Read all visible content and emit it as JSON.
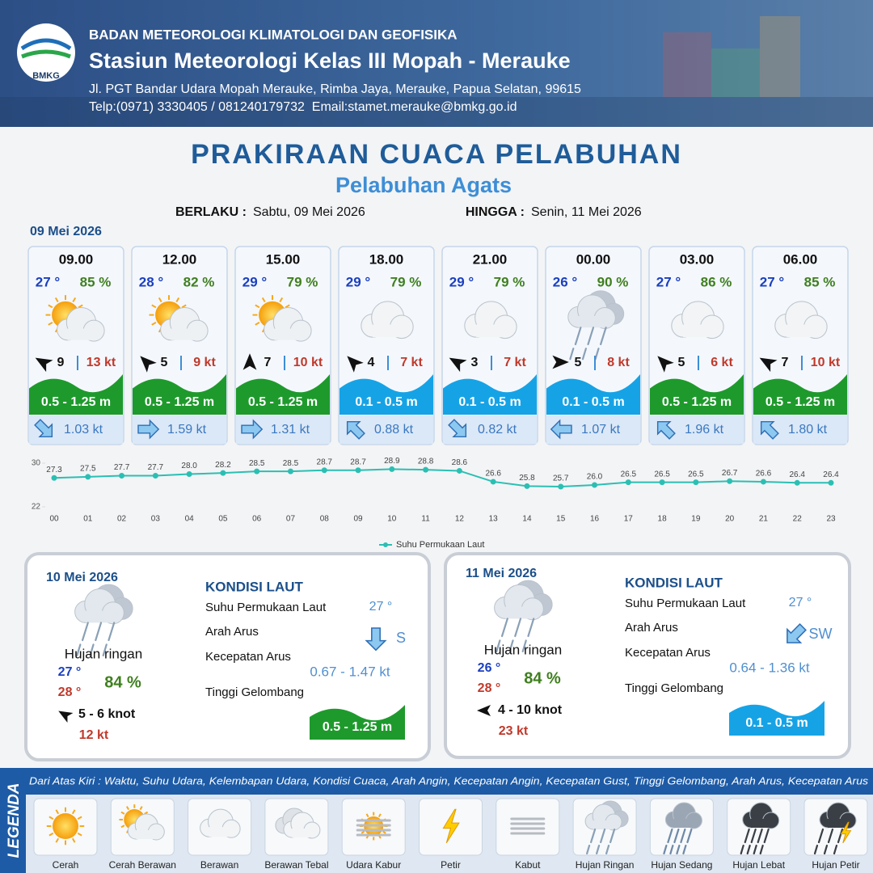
{
  "header": {
    "logo": "BMKG",
    "org": "BADAN METEOROLOGI KLIMATOLOGI DAN GEOFISIKA",
    "station": "Stasiun Meteorologi Kelas III Mopah - Merauke",
    "address": "Jl. PGT Bandar Udara Mopah Merauke, Rimba Jaya, Merauke, Papua Selatan, 99615",
    "contact": "Telp:(0971) 3330405 / 081240179732  Email:stamet.merauke@bmkg.go.id"
  },
  "title": "PRAKIRAAN CUACA PELABUHAN",
  "subtitle": "Pelabuhan Agats",
  "validity": {
    "from_label": "BERLAKU :",
    "from": "Sabtu, 09 Mei 2026",
    "to_label": "HINGGA :",
    "to": "Senin, 11 Mei 2026"
  },
  "day1": {
    "date": "09 Mei 2026",
    "cards": [
      {
        "time": "09.00",
        "temp": "27 °",
        "humidity": "85 %",
        "wind": "9",
        "gust": "13 kt",
        "wave": "0.5 - 1.25 m",
        "wave_color": "#1e9a2c",
        "current": "1.03 kt"
      },
      {
        "time": "12.00",
        "temp": "28 °",
        "humidity": "82 %",
        "wind": "5",
        "gust": "9 kt",
        "wave": "0.5 - 1.25 m",
        "wave_color": "#1e9a2c",
        "current": "1.59 kt"
      },
      {
        "time": "15.00",
        "temp": "29 °",
        "humidity": "79 %",
        "wind": "7",
        "gust": "10 kt",
        "wave": "0.5 - 1.25 m",
        "wave_color": "#1e9a2c",
        "current": "1.31 kt"
      },
      {
        "time": "18.00",
        "temp": "29 °",
        "humidity": "79 %",
        "wind": "4",
        "gust": "7 kt",
        "wave": "0.1 - 0.5 m",
        "wave_color": "#16a3e6",
        "current": "0.88 kt"
      },
      {
        "time": "21.00",
        "temp": "29 °",
        "humidity": "79 %",
        "wind": "3",
        "gust": "7 kt",
        "wave": "0.1 - 0.5 m",
        "wave_color": "#16a3e6",
        "current": "0.82 kt"
      },
      {
        "time": "00.00",
        "temp": "26 °",
        "humidity": "90 %",
        "wind": "5",
        "gust": "8 kt",
        "wave": "0.1 - 0.5 m",
        "wave_color": "#16a3e6",
        "current": "1.07 kt"
      },
      {
        "time": "03.00",
        "temp": "27 °",
        "humidity": "86 %",
        "wind": "5",
        "gust": "6 kt",
        "wave": "0.5 - 1.25 m",
        "wave_color": "#1e9a2c",
        "current": "1.96 kt"
      },
      {
        "time": "06.00",
        "temp": "27 °",
        "humidity": "85 %",
        "wind": "7",
        "gust": "10 kt",
        "wave": "0.5 - 1.25 m",
        "wave_color": "#1e9a2c",
        "current": "1.80 kt"
      }
    ]
  },
  "chart_data": {
    "type": "line",
    "categories": [
      "00",
      "01",
      "02",
      "03",
      "04",
      "05",
      "06",
      "07",
      "08",
      "09",
      "10",
      "11",
      "12",
      "13",
      "14",
      "15",
      "16",
      "17",
      "18",
      "19",
      "20",
      "21",
      "22",
      "23"
    ],
    "series": [
      {
        "name": "Suhu Permukaan Laut",
        "color": "#2bbfb3",
        "values": [
          27.3,
          27.5,
          27.7,
          27.7,
          28.0,
          28.2,
          28.5,
          28.5,
          28.7,
          28.7,
          28.9,
          28.8,
          28.6,
          26.6,
          25.8,
          25.7,
          26.0,
          26.5,
          26.5,
          26.5,
          26.7,
          26.6,
          26.4,
          26.4
        ],
        "value_labels": [
          "27.3",
          "27.5",
          "27.7",
          "27.7",
          "28.0",
          "28.2",
          "28.5",
          "28.5",
          "28.7",
          "28.7",
          "28.9",
          "28.8",
          "28.6",
          "26.6",
          "25.8",
          "25.7",
          "26.0",
          "26.5",
          "26.5",
          "26.5",
          "26.7",
          "26.6",
          "26.4",
          "26.4"
        ]
      }
    ],
    "ylim": [
      22,
      30
    ],
    "yticks": [
      22,
      30
    ]
  },
  "days": [
    {
      "date": "10 Mei 2026",
      "weather": "Hujan ringan",
      "temp_min": "27 °",
      "temp_max": "28 °",
      "humidity": "84 %",
      "wind": "5  - 6 knot",
      "gust": "12 kt",
      "wave_color": "#1e9a2c",
      "sea": {
        "title": "KONDISI LAUT",
        "rows": [
          {
            "label": "Suhu Permukaan Laut",
            "value": "27 °"
          },
          {
            "label": "Arah Arus",
            "value": "S"
          },
          {
            "label": "Kecepatan Arus",
            "value": "0.67 - 1.47 kt"
          },
          {
            "label": "Tinggi Gelombang",
            "value": "0.5 - 1.25 m"
          }
        ]
      }
    },
    {
      "date": "11 Mei 2026",
      "weather": "Hujan ringan",
      "temp_min": "26 °",
      "temp_max": "28 °",
      "humidity": "84 %",
      "wind": "4  - 10 knot",
      "gust": "23 kt",
      "wave_color": "#16a3e6",
      "sea": {
        "title": "KONDISI LAUT",
        "rows": [
          {
            "label": "Suhu Permukaan Laut",
            "value": "27 °"
          },
          {
            "label": "Arah Arus",
            "value": "SW"
          },
          {
            "label": "Kecepatan Arus",
            "value": "0.64 - 1.36 kt"
          },
          {
            "label": "Tinggi Gelombang",
            "value": "0.1 - 0.5 m"
          }
        ]
      }
    }
  ],
  "legend": {
    "title": "LEGENDA",
    "note": "Dari Atas Kiri : Waktu, Suhu Udara, Kelembapan Udara, Kondisi Cuaca, Arah Angin, Kecepatan Angin, Kecepatan Gust, Tinggi Gelombang, Arah Arus, Kecepatan Arus",
    "items": [
      "Cerah",
      "Cerah Berawan",
      "Berawan",
      "Berawan Tebal",
      "Udara Kabur",
      "Petir",
      "Kabut",
      "Hujan Ringan",
      "Hujan Sedang",
      "Hujan Lebat",
      "Hujan Petir"
    ]
  }
}
